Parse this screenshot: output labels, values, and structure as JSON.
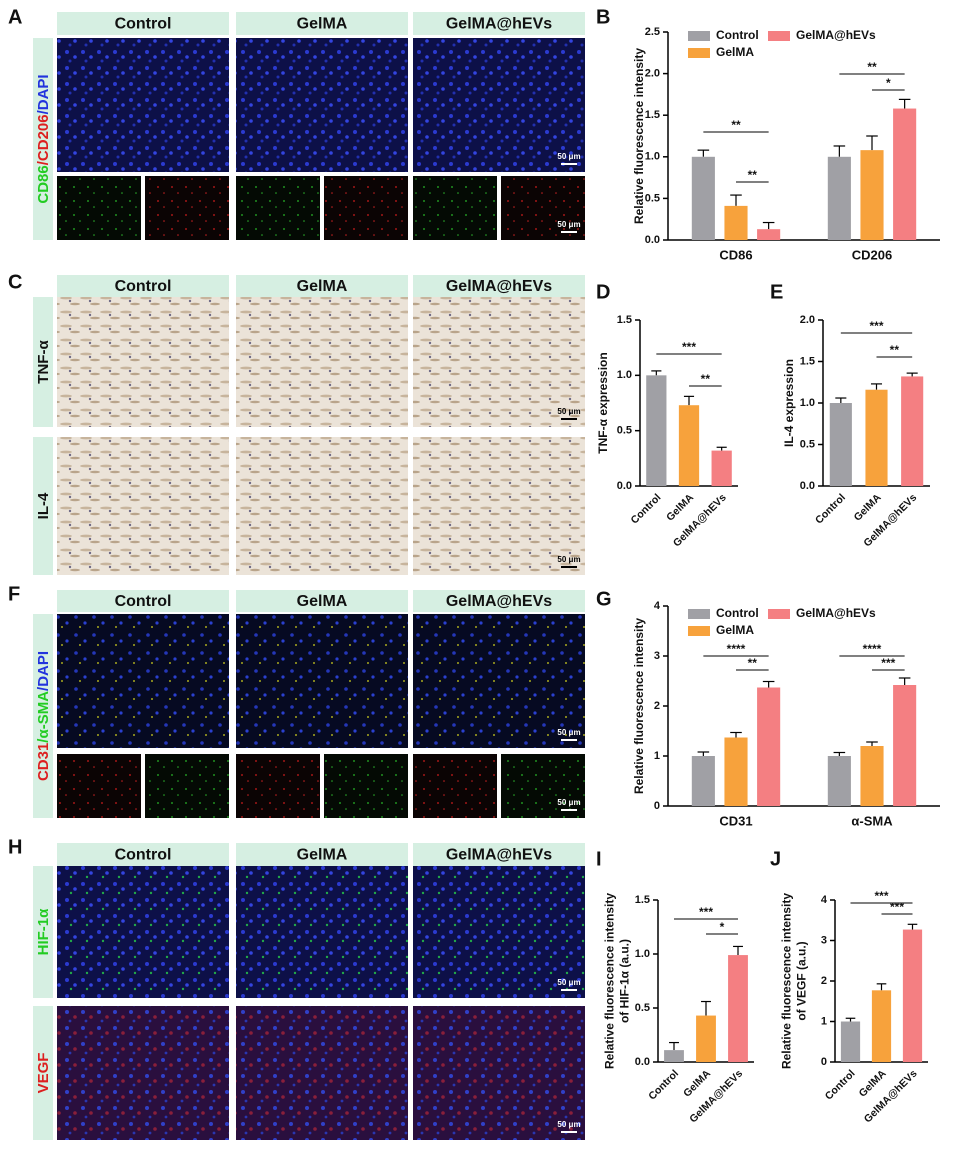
{
  "image_panels": [
    {
      "letter": "A",
      "columns": [
        "Control",
        "GelMA",
        "GelMA@hEVs"
      ],
      "stain_label": [
        {
          "text": "CD86",
          "color": "#22cc22"
        },
        {
          "text": "/CD206",
          "color": "#dd1f1f"
        },
        {
          "text": "/DAPI",
          "color": "#2233dd"
        }
      ],
      "scale_bar": "50 μm"
    },
    {
      "letter": "C",
      "columns": [
        "Control",
        "GelMA",
        "GelMA@hEVs"
      ],
      "row_labels": [
        {
          "text": "TNF-α",
          "color": "#111111"
        },
        {
          "text": "IL-4",
          "color": "#111111"
        }
      ],
      "scale_bar": "50 μm"
    },
    {
      "letter": "F",
      "columns": [
        "Control",
        "GelMA",
        "GelMA@hEVs"
      ],
      "stain_label": [
        {
          "text": "CD31",
          "color": "#dd1f1f"
        },
        {
          "text": "/α-SMA",
          "color": "#22cc22"
        },
        {
          "text": "/DAPI",
          "color": "#2233dd"
        }
      ],
      "scale_bar": "50 μm"
    },
    {
      "letter": "H",
      "columns": [
        "Control",
        "GelMA",
        "GelMA@hEVs"
      ],
      "row_labels": [
        {
          "text": "HIF-1α",
          "color": "#22cc22"
        },
        {
          "text": "VEGF",
          "color": "#dd1f1f"
        }
      ],
      "scale_bar": "50 μm"
    }
  ],
  "chart_data": [
    {
      "letter": "B",
      "type": "grouped_bar",
      "ylabel": "Relative fluorescence intensity",
      "categories": [
        "CD86",
        "CD206"
      ],
      "series": [
        {
          "name": "Control",
          "color": "#a0a0a5",
          "values": [
            1.0,
            1.0
          ],
          "errors": [
            0.08,
            0.13
          ]
        },
        {
          "name": "GelMA",
          "color": "#f7a23c",
          "values": [
            0.41,
            1.08
          ],
          "errors": [
            0.13,
            0.17
          ]
        },
        {
          "name": "GelMA@hEVs",
          "color": "#f47f82",
          "values": [
            0.13,
            1.58
          ],
          "errors": [
            0.08,
            0.11
          ]
        }
      ],
      "ylim": [
        0,
        2.5
      ],
      "yticks": [
        {
          "value": 0,
          "label": "0.0"
        },
        0.5,
        {
          "value": 1,
          "label": "1.0"
        },
        1.5,
        {
          "value": 2,
          "label": "2.0"
        },
        2.5
      ],
      "annotations": [
        "**",
        "**",
        "**",
        "*"
      ]
    },
    {
      "letter": "D",
      "type": "bar",
      "ylabel": "TNF-α expression",
      "categories": [
        "Control",
        "GelMA",
        "GelMA@hEVs"
      ],
      "values": [
        1.0,
        0.73,
        0.32
      ],
      "errors": [
        0.04,
        0.08,
        0.03
      ],
      "colors": [
        "#a0a0a5",
        "#f7a23c",
        "#f47f82"
      ],
      "ylim": [
        0,
        1.5
      ],
      "yticks": [
        {
          "value": 0,
          "label": "0.0"
        },
        0.5,
        {
          "value": 1,
          "label": "1.0"
        },
        1.5
      ],
      "annotations": [
        "***",
        "**"
      ]
    },
    {
      "letter": "E",
      "type": "bar",
      "ylabel": "IL-4 expression",
      "categories": [
        "Control",
        "GelMA",
        "GelMA@hEVs"
      ],
      "values": [
        1.0,
        1.16,
        1.32
      ],
      "errors": [
        0.06,
        0.07,
        0.04
      ],
      "colors": [
        "#a0a0a5",
        "#f7a23c",
        "#f47f82"
      ],
      "ylim": [
        0,
        2
      ],
      "yticks": [
        {
          "value": 0,
          "label": "0.0"
        },
        0.5,
        {
          "value": 1,
          "label": "1.0"
        },
        1.5,
        {
          "value": 2,
          "label": "2.0"
        }
      ],
      "annotations": [
        "***",
        "**"
      ]
    },
    {
      "letter": "G",
      "type": "grouped_bar",
      "ylabel": "Relative fluorescence intensity",
      "categories": [
        "CD31",
        "α-SMA"
      ],
      "series": [
        {
          "name": "Control",
          "color": "#a0a0a5",
          "values": [
            1.0,
            1.0
          ],
          "errors": [
            0.08,
            0.07
          ]
        },
        {
          "name": "GelMA",
          "color": "#f7a23c",
          "values": [
            1.37,
            1.2
          ],
          "errors": [
            0.1,
            0.08
          ]
        },
        {
          "name": "GelMA@hEVs",
          "color": "#f47f82",
          "values": [
            2.37,
            2.42
          ],
          "errors": [
            0.12,
            0.14
          ]
        }
      ],
      "ylim": [
        0,
        4
      ],
      "yticks": [
        0,
        1,
        2,
        3,
        4
      ],
      "annotations": [
        "****",
        "**",
        "****",
        "***"
      ]
    },
    {
      "letter": "I",
      "type": "bar",
      "ylabel": [
        "Relative fluorescence intensity",
        "of HIF-1α (a.u.)"
      ],
      "categories": [
        "Control",
        "GelMA",
        "GelMA@hEVs"
      ],
      "values": [
        0.11,
        0.43,
        0.99
      ],
      "errors": [
        0.07,
        0.13,
        0.08
      ],
      "colors": [
        "#a0a0a5",
        "#f7a23c",
        "#f47f82"
      ],
      "ylim": [
        0,
        1.5
      ],
      "yticks": [
        {
          "value": 0,
          "label": "0.0"
        },
        0.5,
        {
          "value": 1,
          "label": "1.0"
        },
        1.5
      ],
      "annotations": [
        "***",
        "*"
      ]
    },
    {
      "letter": "J",
      "type": "bar",
      "ylabel": [
        "Relative fluorescence intensity",
        "of VEGF (a.u.)"
      ],
      "categories": [
        "Control",
        "GelMA",
        "GelMA@hEVs"
      ],
      "values": [
        1.0,
        1.77,
        3.27
      ],
      "errors": [
        0.08,
        0.16,
        0.13
      ],
      "colors": [
        "#a0a0a5",
        "#f7a23c",
        "#f47f82"
      ],
      "ylim": [
        0,
        4
      ],
      "yticks": [
        0,
        1,
        2,
        3,
        4
      ],
      "annotations": [
        "***",
        "***"
      ]
    }
  ]
}
